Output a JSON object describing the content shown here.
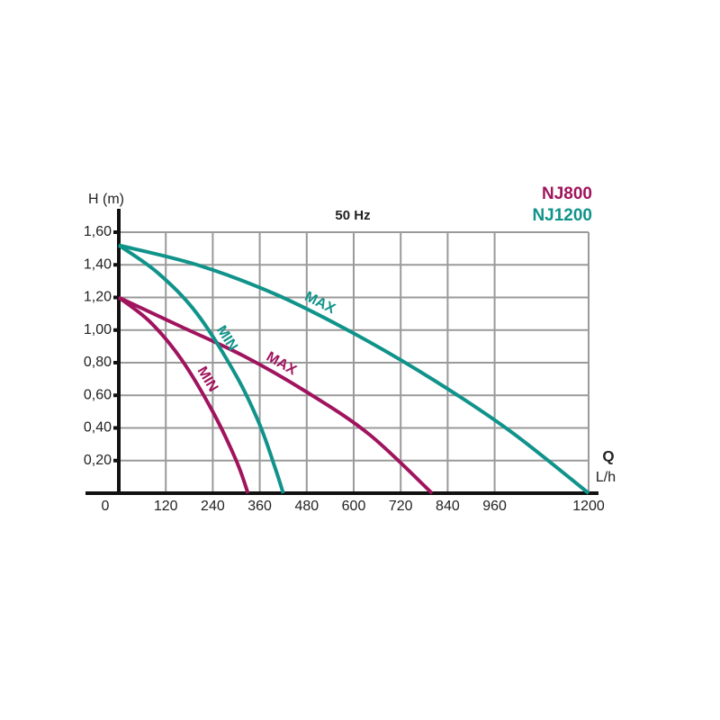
{
  "chart_data": {
    "type": "line",
    "title": "50 Hz",
    "y_label": "H (m)",
    "x_label": "Q",
    "x_unit": "L/h",
    "xlim": [
      0,
      1200
    ],
    "xticks": [
      0,
      120,
      240,
      360,
      480,
      600,
      720,
      840,
      960,
      1200
    ],
    "ylim": [
      0,
      1.6
    ],
    "yticks": [
      {
        "value": 0.2,
        "label": "0,20"
      },
      {
        "value": 0.4,
        "label": "0,40"
      },
      {
        "value": 0.6,
        "label": "0,60"
      },
      {
        "value": 0.8,
        "label": "0,80"
      },
      {
        "value": 1.0,
        "label": "1,00"
      },
      {
        "value": 1.2,
        "label": "1,20"
      },
      {
        "value": 1.4,
        "label": "1,40"
      },
      {
        "value": 1.6,
        "label": "1,60"
      }
    ],
    "grid": true,
    "series": [
      {
        "name": "NJ800",
        "color": "#a0145e",
        "curves": [
          {
            "label": "MAX",
            "x": [
              0,
              160,
              320,
              480,
              640,
              800
            ],
            "values": [
              1.2,
              1.02,
              0.84,
              0.62,
              0.36,
              0
            ]
          },
          {
            "label": "MIN",
            "x": [
              0,
              80,
              160,
              240,
              300,
              330
            ],
            "values": [
              1.2,
              1.05,
              0.82,
              0.5,
              0.2,
              0
            ]
          }
        ]
      },
      {
        "name": "NJ1200",
        "color": "#10938a",
        "curves": [
          {
            "label": "MAX",
            "x": [
              0,
              200,
              400,
              600,
              800,
              1000,
              1200
            ],
            "values": [
              1.52,
              1.4,
              1.22,
              0.98,
              0.7,
              0.38,
              0
            ]
          },
          {
            "label": "MIN",
            "x": [
              0,
              100,
              200,
              300,
              360,
              400,
              420
            ],
            "values": [
              1.52,
              1.35,
              1.1,
              0.72,
              0.42,
              0.15,
              0
            ]
          }
        ]
      }
    ]
  }
}
